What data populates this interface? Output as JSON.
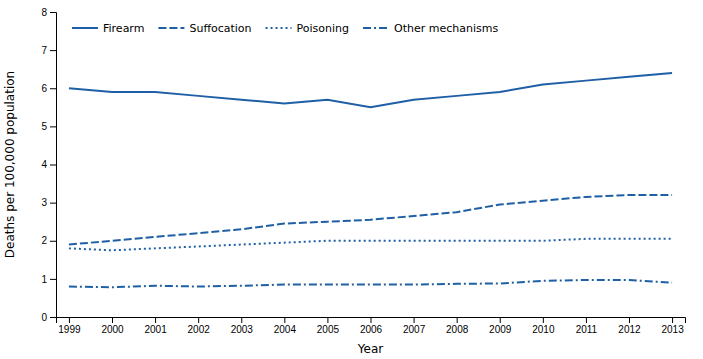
{
  "chart_data": {
    "type": "line",
    "x": [
      1999,
      2000,
      2001,
      2002,
      2003,
      2004,
      2005,
      2006,
      2007,
      2008,
      2009,
      2010,
      2011,
      2012,
      2013
    ],
    "xlabel": "Year",
    "ylabel": "Deaths per 100,000 population",
    "xlim": [
      1998.7,
      2013.3
    ],
    "xticks": [
      1999,
      2000,
      2001,
      2002,
      2003,
      2004,
      2005,
      2006,
      2007,
      2008,
      2009,
      2010,
      2011,
      2012,
      2013
    ],
    "ylim": [
      0,
      8
    ],
    "yticks": [
      0,
      1,
      2,
      3,
      4,
      5,
      6,
      7,
      8
    ],
    "grid": false,
    "legend": "upper-left",
    "series": [
      {
        "name": "Firearm",
        "color": "#1f5fa6",
        "line_style": "solid",
        "values": [
          6.0,
          5.9,
          5.9,
          5.8,
          5.7,
          5.6,
          5.7,
          5.5,
          5.7,
          5.8,
          5.9,
          6.1,
          6.2,
          6.3,
          6.4
        ]
      },
      {
        "name": "Suffocation",
        "color": "#1f5fa6",
        "line_style": "dashed",
        "values": [
          1.9,
          2.0,
          2.1,
          2.2,
          2.3,
          2.45,
          2.5,
          2.55,
          2.65,
          2.75,
          2.95,
          3.05,
          3.15,
          3.2,
          3.2
        ]
      },
      {
        "name": "Poisoning",
        "color": "#1f5fa6",
        "line_style": "dotted",
        "values": [
          1.8,
          1.75,
          1.8,
          1.85,
          1.9,
          1.95,
          2.0,
          2.0,
          2.0,
          2.0,
          2.0,
          2.0,
          2.05,
          2.05,
          2.05
        ]
      },
      {
        "name": "Other mechanisms",
        "color": "#1f5fa6",
        "line_style": "dashdot",
        "values": [
          0.8,
          0.78,
          0.82,
          0.8,
          0.82,
          0.85,
          0.85,
          0.85,
          0.85,
          0.87,
          0.88,
          0.95,
          0.97,
          0.97,
          0.9
        ]
      }
    ]
  }
}
